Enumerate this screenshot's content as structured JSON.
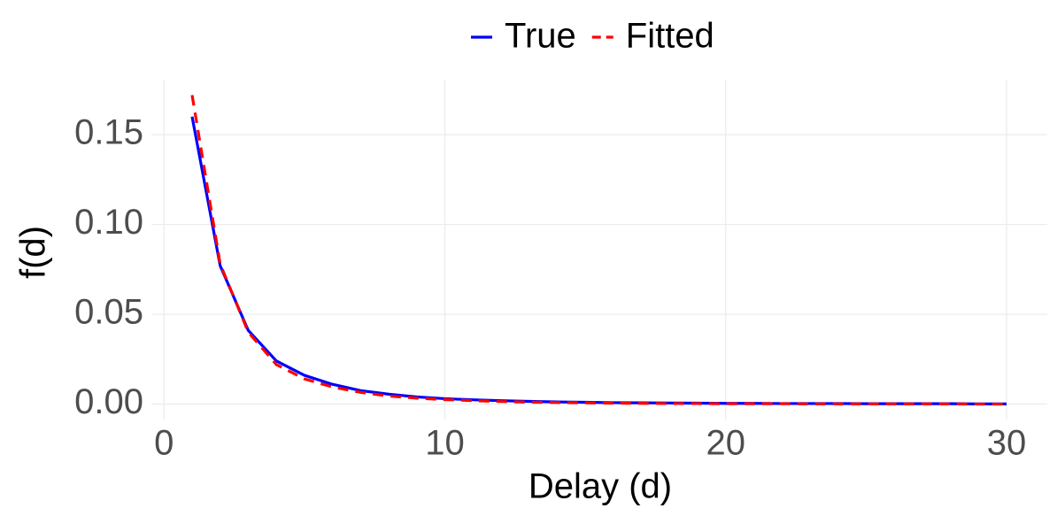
{
  "chart_data": {
    "type": "line",
    "x_label": "Delay (d)",
    "y_label": "f(d)",
    "x": [
      1,
      2,
      3,
      4,
      5,
      6,
      7,
      8,
      9,
      10,
      11,
      12,
      13,
      14,
      15,
      16,
      17,
      18,
      19,
      20,
      21,
      22,
      23,
      24,
      25,
      26,
      27,
      28,
      29,
      30
    ],
    "series": [
      {
        "name": "True",
        "color": "#0000ff",
        "dashed": false,
        "values": [
          0.16,
          0.077,
          0.041,
          0.024,
          0.016,
          0.011,
          0.0075,
          0.0055,
          0.004,
          0.003,
          0.0024,
          0.0019,
          0.0015,
          0.0012,
          0.001,
          0.0008,
          0.0007,
          0.0006,
          0.0005,
          0.0004,
          0.0004,
          0.0003,
          0.0003,
          0.0003,
          0.0002,
          0.0002,
          0.0002,
          0.0002,
          0.0001,
          0.0001
        ]
      },
      {
        "name": "Fitted",
        "color": "#ff0000",
        "dashed": true,
        "values": [
          0.172,
          0.078,
          0.04,
          0.022,
          0.014,
          0.0095,
          0.0065,
          0.0045,
          0.0033,
          0.0025,
          0.0019,
          0.0014,
          0.0011,
          0.0009,
          0.0007,
          0.0005,
          0.0004,
          0.0003,
          0.0003,
          0.0002,
          0.0002,
          0.0002,
          0.0001,
          0.0001,
          0.0001,
          0.0001,
          0.0001,
          0.0001,
          0,
          0
        ]
      }
    ],
    "xlim": [
      -0.45,
      31.45
    ],
    "ylim": [
      -0.0086,
      0.1806
    ],
    "xticks": [
      0,
      10,
      20,
      30
    ],
    "yticks": [
      {
        "value": 0,
        "label": "0.00"
      },
      {
        "value": 0.05,
        "label": "0.05"
      },
      {
        "value": 0.1,
        "label": "0.10"
      },
      {
        "value": 0.15,
        "label": "0.15"
      }
    ],
    "grid": true,
    "legend": "top"
  }
}
